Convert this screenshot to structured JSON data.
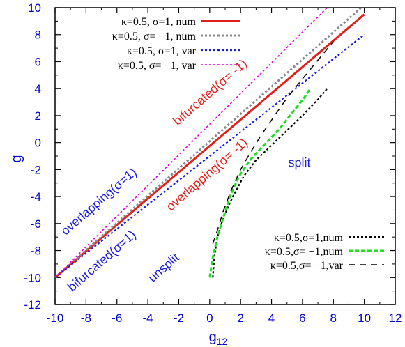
{
  "chart_data": {
    "type": "line",
    "xlabel": "g",
    "xlabel_sub": "12",
    "ylabel": "g",
    "xlim": [
      -10,
      12
    ],
    "ylim": [
      -12,
      10
    ],
    "xticks": [
      "-10",
      "-8",
      "-6",
      "-4",
      "-2",
      "0",
      "2",
      "4",
      "6",
      "8",
      "10",
      "12"
    ],
    "yticks": [
      "10",
      "8",
      "6",
      "4",
      "2",
      "0",
      "-2",
      "-4",
      "-6",
      "-8",
      "-10",
      "-12"
    ],
    "grid": false,
    "tick_color": "#0000cc",
    "series": [
      {
        "name": "κ=0.5, σ=1, num",
        "color": "#e0201b",
        "style": "solid",
        "width": 3,
        "points": [
          [
            -10,
            -10
          ],
          [
            10,
            9.5
          ]
        ]
      },
      {
        "name": "κ=0.5, σ= −1, num",
        "color": "#888888",
        "style": "dot",
        "width": 3,
        "points": [
          [
            -10,
            -10
          ],
          [
            9.8,
            10
          ]
        ]
      },
      {
        "name": "κ=0.5, σ=1, var",
        "color": "#1a1adb",
        "style": "dot",
        "width": 2.2,
        "points": [
          [
            -10,
            -10
          ],
          [
            10,
            8
          ]
        ]
      },
      {
        "name": "κ=0.5, σ= −1, var",
        "color": "#e000e0",
        "style": "dot",
        "width": 1.6,
        "points": [
          [
            -10,
            -10
          ],
          [
            7.6,
            10
          ]
        ]
      },
      {
        "name": "κ=0.5,σ=1,num",
        "color": "#000000",
        "style": "dot",
        "width": 2.2,
        "points": [
          [
            0.2,
            -10
          ],
          [
            0.3,
            -8.5
          ],
          [
            0.5,
            -7
          ],
          [
            0.9,
            -5.5
          ],
          [
            1.5,
            -4
          ],
          [
            2.2,
            -2.5
          ],
          [
            3.0,
            -1.3
          ],
          [
            4.0,
            -0.2
          ],
          [
            5.0,
            0.9
          ],
          [
            6.0,
            2.0
          ],
          [
            7.0,
            3.2
          ],
          [
            7.6,
            4.0
          ]
        ]
      },
      {
        "name": "κ=0.5,σ= −1,num",
        "color": "#22dd22",
        "style": "dash",
        "width": 3,
        "points": [
          [
            0,
            -10
          ],
          [
            0.2,
            -8.5
          ],
          [
            0.5,
            -7
          ],
          [
            0.9,
            -5.5
          ],
          [
            1.3,
            -4
          ],
          [
            1.9,
            -2.5
          ],
          [
            2.6,
            -1.3
          ],
          [
            3.5,
            -0.2
          ],
          [
            4.5,
            1
          ],
          [
            5.4,
            2.3
          ],
          [
            6.1,
            3.3
          ],
          [
            6.5,
            4.0
          ]
        ]
      },
      {
        "name": "κ=0.5,σ= −1,var",
        "color": "#000000",
        "style": "longdash",
        "width": 1.5,
        "points": [
          [
            0.2,
            -7.5
          ],
          [
            0.5,
            -6.5
          ],
          [
            0.9,
            -5.0
          ],
          [
            1.4,
            -3.5
          ],
          [
            2.0,
            -2.0
          ],
          [
            2.6,
            -0.8
          ],
          [
            3.3,
            0.5
          ],
          [
            4.2,
            2.0
          ],
          [
            5.0,
            3.3
          ],
          [
            6.2,
            5.0
          ],
          [
            7.5,
            6.8
          ],
          [
            8.0,
            7.5
          ]
        ]
      }
    ],
    "legend_top": {
      "placement": "top-left",
      "entries": [
        "κ=0.5, σ=1, num",
        "κ=0.5, σ= −1, num",
        "κ=0.5, σ=1, var",
        "κ=0.5, σ= −1, var"
      ]
    },
    "legend_bottom": {
      "placement": "bottom-right",
      "entries": [
        "κ=0.5,σ=1,num",
        "κ=0.5,σ= −1,num",
        "κ=0.5,σ= −1,var"
      ]
    },
    "annotations": [
      {
        "text": "bifurcated(σ= -1)",
        "color": "#e0201b",
        "x": 0.2,
        "y": 3.5,
        "angle": 41
      },
      {
        "text": "overlapping(σ= -1)",
        "color": "#e0201b",
        "x": 0.0,
        "y": -2.6,
        "angle": 41
      },
      {
        "text": "split",
        "color": "#1a1adb",
        "x": 5.8,
        "y": -1.8,
        "angle": 0
      },
      {
        "text": "overlapping(σ=1)",
        "color": "#1a1adb",
        "x": -7.0,
        "y": -4.6,
        "angle": 41
      },
      {
        "text": "bifurcated(σ=1)",
        "color": "#1a1adb",
        "x": -6.8,
        "y": -9.0,
        "angle": 41
      },
      {
        "text": "unsplit",
        "color": "#1a1adb",
        "x": -2.8,
        "y": -9.5,
        "angle": 41
      }
    ]
  }
}
